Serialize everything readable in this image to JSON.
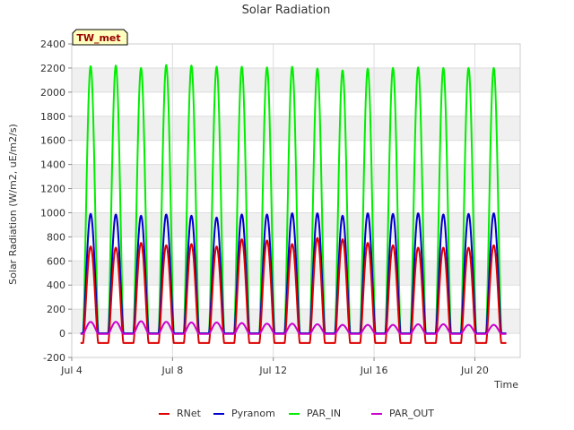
{
  "chart_data": {
    "type": "line",
    "title": "Solar Radiation",
    "site_label": "TW_met",
    "xlabel": "Time",
    "ylabel": "Solar Radiation (W/m2, uE/m2/s)",
    "xlim": [
      4.0,
      21.8
    ],
    "ylim": [
      -200,
      2400
    ],
    "y_ticks": [
      -200,
      0,
      200,
      400,
      600,
      800,
      1000,
      1200,
      1400,
      1600,
      1800,
      2000,
      2200,
      2400
    ],
    "x_ticks": [
      {
        "value": 4,
        "label": "Jul 4"
      },
      {
        "value": 8,
        "label": "Jul 8"
      },
      {
        "value": 12,
        "label": "Jul 12"
      },
      {
        "value": 16,
        "label": "Jul 16"
      },
      {
        "value": 20,
        "label": "Jul 20"
      }
    ],
    "grid": true,
    "legend_position": "bottom",
    "x_unit": "day of July",
    "day_peak_centers": [
      4.75,
      5.75,
      6.75,
      7.75,
      8.75,
      9.75,
      10.75,
      11.75,
      12.75,
      13.75,
      14.75,
      15.75,
      16.75,
      17.75,
      18.75,
      19.75,
      20.75
    ],
    "series": [
      {
        "name": "RNet",
        "color": "#dd0000",
        "night_value": -80,
        "daily_peaks": [
          720,
          710,
          750,
          730,
          740,
          720,
          780,
          770,
          740,
          790,
          780,
          750,
          730,
          710,
          710,
          710,
          730
        ]
      },
      {
        "name": "Pyranom",
        "color": "#0000cc",
        "night_value": 0,
        "daily_peaks": [
          990,
          985,
          975,
          985,
          975,
          960,
          985,
          985,
          995,
          995,
          975,
          995,
          990,
          995,
          985,
          990,
          995
        ]
      },
      {
        "name": "PAR_IN",
        "color": "#00ee00",
        "night_value": 0,
        "daily_peaks": [
          2215,
          2220,
          2200,
          2225,
          2220,
          2210,
          2210,
          2205,
          2210,
          2195,
          2180,
          2195,
          2200,
          2205,
          2200,
          2200,
          2200
        ]
      },
      {
        "name": "PAR_OUT",
        "color": "#cc00cc",
        "night_value": -5,
        "daily_peaks": [
          95,
          95,
          100,
          95,
          90,
          90,
          85,
          80,
          80,
          75,
          70,
          70,
          70,
          75,
          75,
          70,
          70
        ]
      }
    ]
  }
}
